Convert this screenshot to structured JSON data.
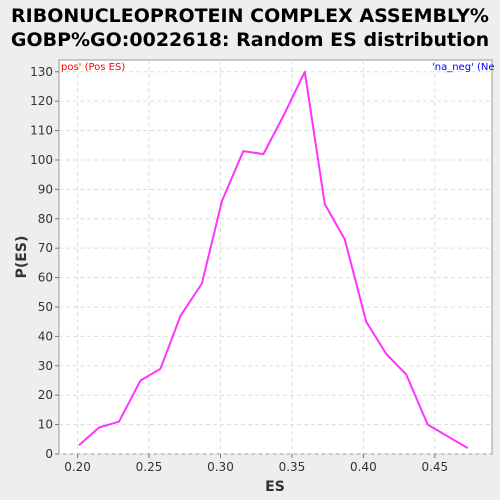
{
  "chart_data": {
    "type": "line",
    "title_lines": [
      "RIBONUCLEOPROTEIN COMPLEX ASSEMBLY%",
      "GOBP%GO:0022618: Random ES distribution"
    ],
    "xlabel": "ES",
    "ylabel": "P(ES)",
    "xlim": [
      0.187,
      0.49
    ],
    "ylim": [
      0,
      134
    ],
    "x_ticks": [
      0.2,
      0.25,
      0.3,
      0.35,
      0.4,
      0.45
    ],
    "x_tick_labels": [
      "0.20",
      "0.25",
      "0.30",
      "0.35",
      "0.40",
      "0.45"
    ],
    "y_ticks": [
      0,
      10,
      20,
      30,
      40,
      50,
      60,
      70,
      80,
      90,
      100,
      110,
      120,
      130
    ],
    "y_tick_labels": [
      "0",
      "10",
      "20",
      "30",
      "40",
      "50",
      "60",
      "70",
      "80",
      "90",
      "100",
      "110",
      "120",
      "130"
    ],
    "grid": true,
    "legend_left": {
      "text": "pos' (Pos ES)",
      "color": "#ff0000"
    },
    "legend_right": {
      "text": "'na_neg' (Ne",
      "color": "#0000ff"
    },
    "series": [
      {
        "color": "#ff33ff",
        "x": [
          0.201,
          0.215,
          0.229,
          0.244,
          0.258,
          0.272,
          0.287,
          0.301,
          0.316,
          0.33,
          0.344,
          0.359,
          0.373,
          0.387,
          0.402,
          0.416,
          0.43,
          0.445,
          0.473
        ],
        "y": [
          3,
          9,
          11,
          25,
          29,
          47,
          58,
          86,
          103,
          102,
          115,
          130,
          85,
          73,
          45,
          34,
          27,
          10,
          2
        ]
      }
    ]
  }
}
